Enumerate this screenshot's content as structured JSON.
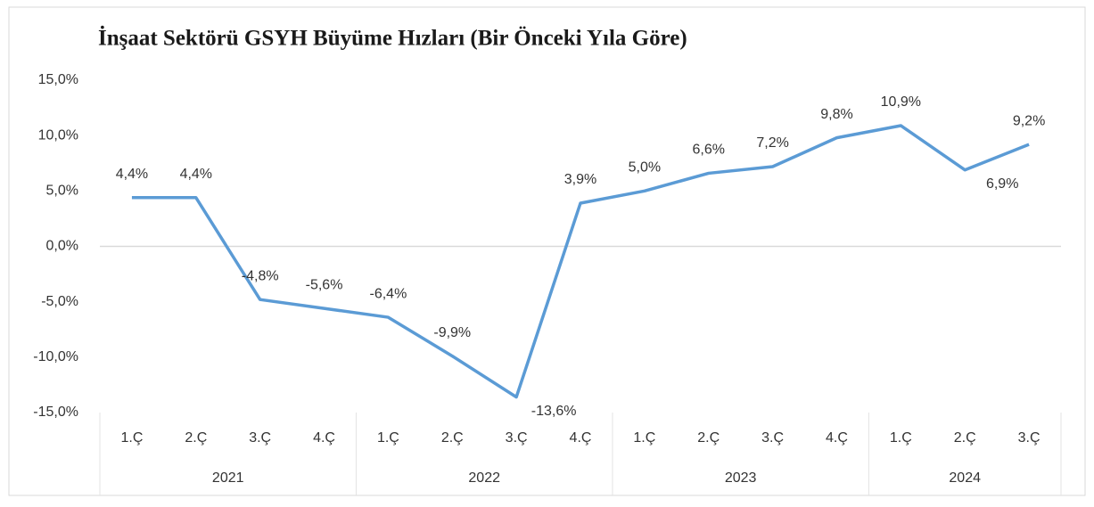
{
  "chart_data": {
    "type": "line",
    "title": "İnşaat Sektörü GSYH Büyüme Hızları (Bir Önceki Yıla Göre)",
    "categories": [
      "1.Ç",
      "2.Ç",
      "3.Ç",
      "4.Ç",
      "1.Ç",
      "2.Ç",
      "3.Ç",
      "4.Ç",
      "1.Ç",
      "2.Ç",
      "3.Ç",
      "4.Ç",
      "1.Ç",
      "2.Ç",
      "3.Ç"
    ],
    "groups": [
      "2021",
      "2022",
      "2023",
      "2024"
    ],
    "series": [
      {
        "color": "#5b9bd5",
        "values": [
          4.4,
          4.4,
          -4.8,
          -5.6,
          -6.4,
          -9.9,
          -13.6,
          3.9,
          5.0,
          6.6,
          7.2,
          9.8,
          10.9,
          6.9,
          9.2
        ],
        "value_labels": [
          "4,4%",
          "4,4%",
          "-4,8%",
          "-5,6%",
          "-6,4%",
          "-9,9%",
          "-13,6%",
          "3,9%",
          "5,0%",
          "6,6%",
          "7,2%",
          "9,8%",
          "10,9%",
          "6,9%",
          "9,2%"
        ]
      }
    ],
    "ylim": [
      -15,
      15
    ],
    "yticks": [
      {
        "value": -15,
        "label": "-15,0%"
      },
      {
        "value": -10,
        "label": "-10,0%"
      },
      {
        "value": -5,
        "label": "-5,0%"
      },
      {
        "value": 0,
        "label": "0,0%"
      },
      {
        "value": 5,
        "label": "5,0%"
      },
      {
        "value": 10,
        "label": "10,0%"
      },
      {
        "value": 15,
        "label": "15,0%"
      }
    ],
    "grid": false
  }
}
